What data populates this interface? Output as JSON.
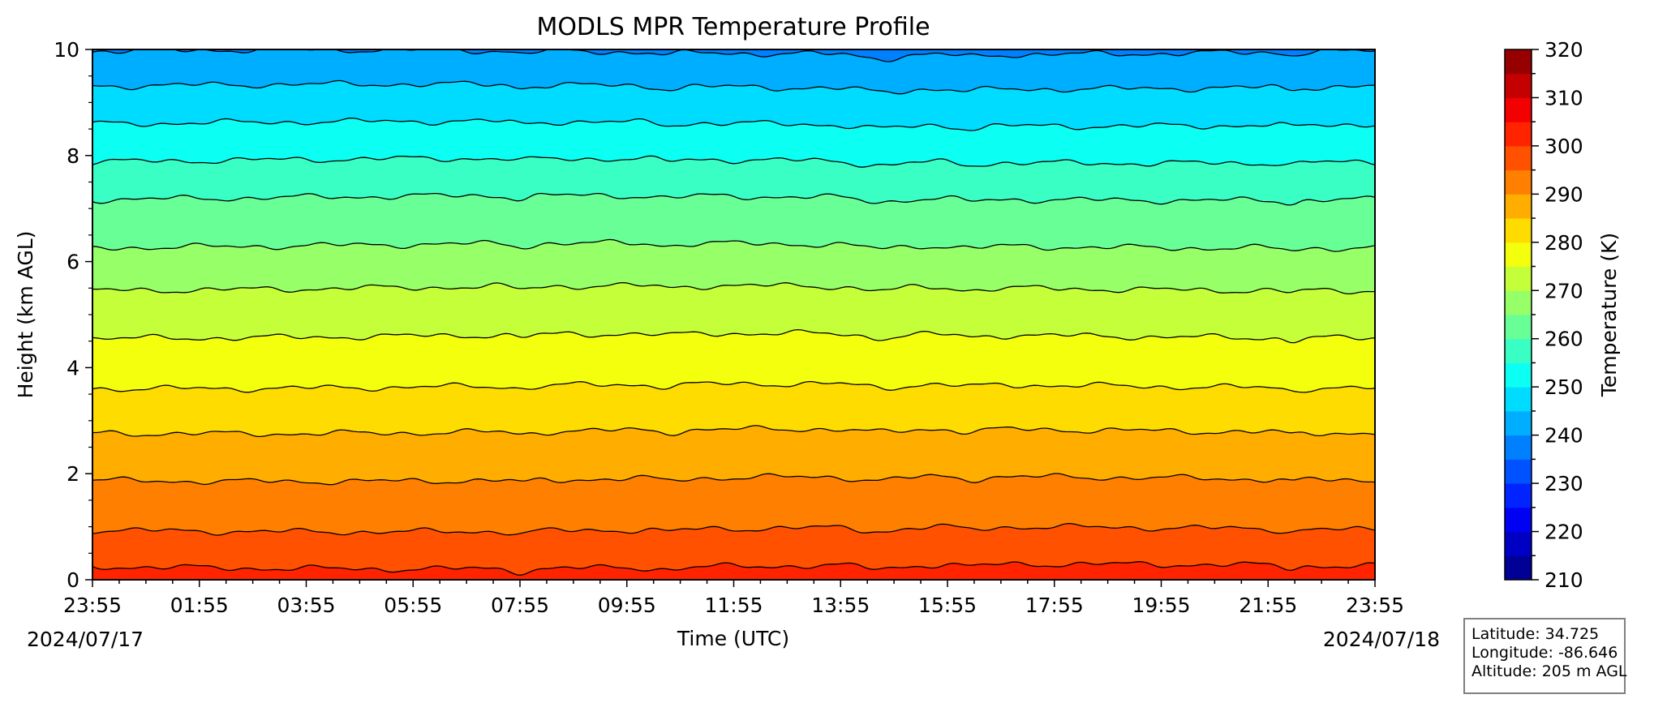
{
  "chart_data": {
    "type": "heatmap",
    "title": "MODLS MPR Temperature Profile",
    "xlabel": "Time (UTC)",
    "ylabel": "Height (km AGL)",
    "ylim": [
      0,
      10
    ],
    "x_tick_labels": [
      "23:55",
      "01:55",
      "03:55",
      "05:55",
      "07:55",
      "09:55",
      "11:55",
      "13:55",
      "15:55",
      "17:55",
      "19:55",
      "21:55",
      "23:55"
    ],
    "start_date": "2024/07/17",
    "end_date": "2024/07/18",
    "y_ticks": [
      "0",
      "2",
      "4",
      "6",
      "8",
      "10"
    ],
    "colorbar": {
      "label": "Temperature (K)",
      "range": [
        210,
        320
      ],
      "step": 5,
      "tick_labels": [
        "210",
        "220",
        "230",
        "240",
        "250",
        "260",
        "270",
        "280",
        "290",
        "300",
        "310",
        "320"
      ],
      "colormap": "jet"
    },
    "contour_heights_km": [
      0.25,
      0.95,
      1.9,
      2.8,
      3.65,
      4.6,
      5.5,
      6.3,
      7.2,
      7.9,
      8.6,
      9.3,
      9.95
    ],
    "surface_temperature_k": 300,
    "lapse_rate_k_per_km": 7,
    "grid": false
  },
  "station": {
    "latitude": "Latitude: 34.725",
    "longitude": "Longitude: -86.646",
    "altitude": "Altitude: 205 m AGL"
  }
}
